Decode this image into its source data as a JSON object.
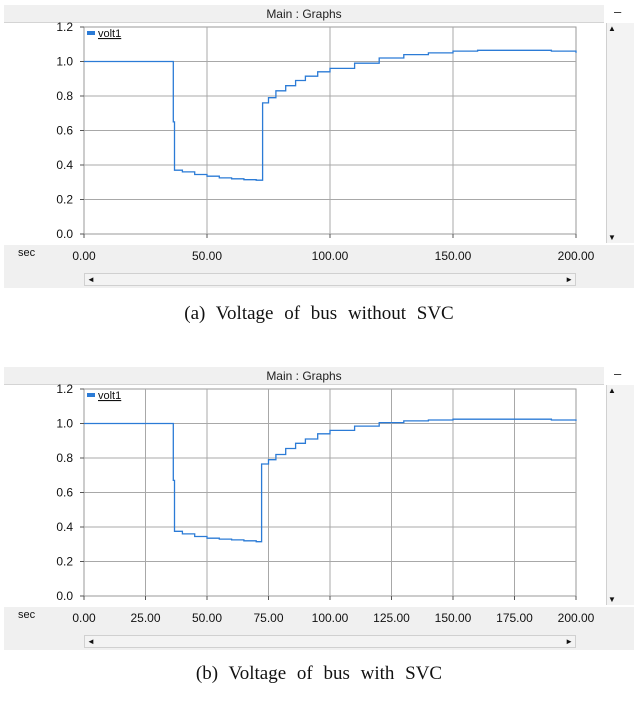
{
  "window_title": "Main : Graphs",
  "minimize_glyph": "–",
  "x_unit": "sec",
  "charts": [
    {
      "caption": "(a)  Voltage of bus without SVC",
      "legend": "volt1",
      "series_color": "#2b7bd6",
      "x_ticks": [
        "0.00",
        "50.00",
        "100.00",
        "150.00",
        "200.00"
      ],
      "y_ticks": [
        "1.2",
        "1.0",
        "0.8",
        "0.6",
        "0.4",
        "0.2",
        "0.0"
      ]
    },
    {
      "caption": "(b)  Voltage of bus with SVC",
      "legend": "volt1",
      "series_color": "#2b7bd6",
      "x_ticks": [
        "0.00",
        "25.00",
        "50.00",
        "75.00",
        "100.00",
        "125.00",
        "150.00",
        "175.00",
        "200.00"
      ],
      "y_ticks": [
        "1.2",
        "1.0",
        "0.8",
        "0.6",
        "0.4",
        "0.2",
        "0.0"
      ]
    }
  ],
  "chart_data": [
    {
      "type": "line",
      "title": "Main : Graphs",
      "xlabel": "sec",
      "ylabel": "",
      "xlim": [
        0,
        200
      ],
      "ylim": [
        0,
        1.2
      ],
      "grid": true,
      "legend_position": "top-left",
      "series": [
        {
          "name": "volt1",
          "x": [
            0,
            36,
            36.3,
            36.8,
            40,
            45,
            50,
            55,
            60,
            65,
            70,
            72.5,
            72.6,
            75,
            78,
            82,
            86,
            90,
            95,
            100,
            110,
            120,
            130,
            140,
            150,
            160,
            170,
            180,
            190,
            200
          ],
          "y": [
            1.0,
            1.0,
            0.65,
            0.37,
            0.36,
            0.345,
            0.335,
            0.325,
            0.32,
            0.315,
            0.312,
            0.312,
            0.76,
            0.79,
            0.83,
            0.86,
            0.89,
            0.915,
            0.94,
            0.96,
            0.99,
            1.02,
            1.04,
            1.05,
            1.06,
            1.065,
            1.065,
            1.065,
            1.06,
            1.05
          ]
        }
      ]
    },
    {
      "type": "line",
      "title": "Main : Graphs",
      "xlabel": "sec",
      "ylabel": "",
      "xlim": [
        0,
        200
      ],
      "ylim": [
        0,
        1.2
      ],
      "grid": true,
      "legend_position": "top-left",
      "series": [
        {
          "name": "volt1",
          "x": [
            0,
            36,
            36.3,
            36.8,
            40,
            45,
            50,
            55,
            60,
            65,
            70,
            72,
            72.2,
            75,
            78,
            82,
            86,
            90,
            95,
            100,
            110,
            120,
            130,
            140,
            150,
            160,
            170,
            180,
            190,
            200
          ],
          "y": [
            1.0,
            1.0,
            0.67,
            0.375,
            0.36,
            0.345,
            0.335,
            0.33,
            0.325,
            0.32,
            0.315,
            0.315,
            0.765,
            0.79,
            0.82,
            0.855,
            0.885,
            0.91,
            0.94,
            0.96,
            0.985,
            1.005,
            1.015,
            1.02,
            1.025,
            1.025,
            1.025,
            1.025,
            1.02,
            1.015
          ]
        }
      ]
    }
  ]
}
